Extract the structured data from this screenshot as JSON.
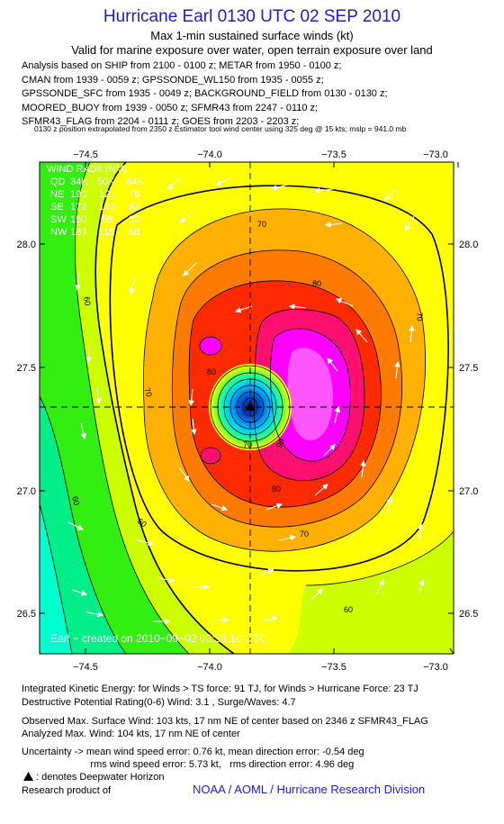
{
  "header": {
    "title": "Hurricane Earl 0130 UTC 02 SEP 2010",
    "subtitle": "Max 1-min sustained surface winds (kt)",
    "subtitle2": "Valid for marine exposure over water, open terrain exposure over land",
    "analysis_lines": [
      "Analysis based on SHIP from 2100 - 0100 z; METAR from 1950 - 0100 z;",
      "CMAN from 1939 - 0059 z; GPSSONDE_WL150 from 1935 - 0055 z;",
      "GPSSONDE_SFC from 1935 - 0049 z; BACKGROUND_FIELD from 0130 - 0130 z;",
      "MOORED_BUOY from 1939 - 0050 z; SFMR43 from 2247 - 0110 z;",
      "SFMR43_FLAG from 2204 - 0111 z; GOES from 2203 - 2203 z;"
    ],
    "position_note": "0130 z position extrapolated from 2350 z Estimator tool wind center using 325 deg @ 15 kts; mslp = 941.0 mb"
  },
  "map": {
    "x_ticks": [
      "−74.5",
      "−74.0",
      "−73.5",
      "−73.0"
    ],
    "y_ticks": [
      "28.0",
      "27.5",
      "27.0",
      "26.5"
    ],
    "contour_labels": [
      "70",
      "60",
      "70",
      "80",
      "80",
      "90",
      "70",
      "80",
      "70",
      "60",
      "60",
      "60",
      "70"
    ],
    "wind_radii": {
      "title": "WIND RADII (NM)",
      "header": [
        "QD",
        "34K",
        "50K",
        "64K"
      ],
      "rows": [
        [
          "NE",
          "190",
          "121",
          "78"
        ],
        [
          "SE",
          "172",
          "105",
          "63"
        ],
        [
          "SW",
          "150",
          "58",
          "33"
        ],
        [
          "NW",
          "189",
          "115",
          "68"
        ]
      ]
    },
    "watermark": "Earl − created on 2010−09−02 00:33:10 UTC",
    "colors": {
      "yellow": "#ffff00",
      "yellow_green": "#ccff00",
      "green": "#33ee11",
      "orange": "#ffb000",
      "dark_orange": "#ff7a00",
      "red": "#ff2a00",
      "magenta": "#ff00ff",
      "cyan": "#00ffcc"
    }
  },
  "footer": {
    "lines": [
      "Integrated Kinetic Energy: for Winds > TS force: 91 TJ,  for Winds > Hurricane Force: 23 TJ",
      "Destructive Potential Rating(0-6)   Wind: 3.1 , Surge/Waves: 4.7",
      "Observed Max. Surface Wind: 103 kts, 17 nm NE of center based on 2346 z SFMR43_FLAG",
      "Analyzed Max. Wind: 104 kts, 17 nm NE of center",
      "Uncertainty -> mean wind speed error: 0.76 kt,   mean direction error:  -0.54 deg",
      "                         rms wind speed error: 5.73 kt,   rms direction error: 4.96 deg",
      ": denotes Deepwater Horizon",
      "Research product of"
    ],
    "credit": "NOAA / AOML / Hurricane Research Division"
  }
}
